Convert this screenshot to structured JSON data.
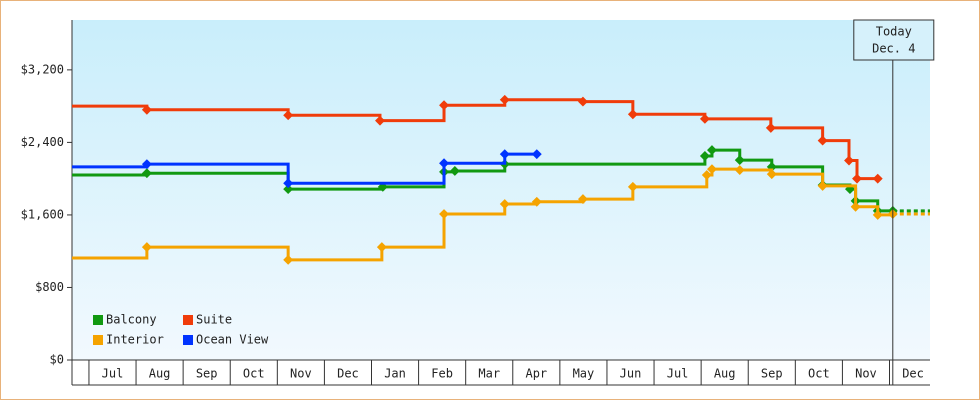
{
  "chart_data": {
    "type": "step-line",
    "xticks": [
      {
        "value": 0.5,
        "label": "Jul"
      },
      {
        "value": 1.5,
        "label": "Aug"
      },
      {
        "value": 2.5,
        "label": "Sep"
      },
      {
        "value": 3.5,
        "label": "Oct"
      },
      {
        "value": 4.5,
        "label": "Nov"
      },
      {
        "value": 5.5,
        "label": "Dec"
      },
      {
        "value": 6.5,
        "label": "Jan"
      },
      {
        "value": 7.5,
        "label": "Feb"
      },
      {
        "value": 8.5,
        "label": "Mar"
      },
      {
        "value": 9.5,
        "label": "Apr"
      },
      {
        "value": 10.5,
        "label": "May"
      },
      {
        "value": 11.5,
        "label": "Jun"
      },
      {
        "value": 12.5,
        "label": "Jul"
      },
      {
        "value": 13.5,
        "label": "Aug"
      },
      {
        "value": 14.5,
        "label": "Sep"
      },
      {
        "value": 15.5,
        "label": "Oct"
      },
      {
        "value": 16.5,
        "label": "Nov"
      },
      {
        "value": 17.5,
        "label": "Dec"
      }
    ],
    "xlim": [
      -0.36,
      17.86
    ],
    "ylim": [
      0,
      3750
    ],
    "yticks": [
      {
        "value": 0,
        "label": "$0"
      },
      {
        "value": 800,
        "label": "$800"
      },
      {
        "value": 1600,
        "label": "$1,600"
      },
      {
        "value": 2400,
        "label": "$2,400"
      },
      {
        "value": 3200,
        "label": "$3,200"
      }
    ],
    "annotation": {
      "lines": [
        "Today",
        "Dec. 4"
      ],
      "x": 17.07
    },
    "series": [
      {
        "name": "Balcony",
        "color": "#119911",
        "x": [
          -0.36,
          1.23,
          4.23,
          6.24,
          7.54,
          7.77,
          8.83,
          13.08,
          13.23,
          13.82,
          14.5,
          15.58,
          16.16,
          16.28,
          16.75,
          17.07
        ],
        "values": [
          2040,
          2060,
          1885,
          1910,
          2075,
          2085,
          2160,
          2250,
          2315,
          2205,
          2130,
          1930,
          1885,
          1755,
          1645,
          1645
        ]
      },
      {
        "name": "Suite",
        "color": "#f03c0a",
        "x": [
          -0.36,
          1.23,
          4.23,
          6.18,
          7.54,
          8.83,
          10.49,
          11.55,
          13.08,
          14.48,
          15.58,
          16.14,
          16.31,
          16.75
        ],
        "values": [
          2800,
          2760,
          2700,
          2640,
          2810,
          2870,
          2850,
          2710,
          2660,
          2560,
          2420,
          2200,
          2000,
          2000
        ]
      },
      {
        "name": "Interior",
        "color": "#f5a300",
        "x": [
          -0.36,
          1.23,
          4.23,
          6.22,
          7.54,
          8.83,
          9.51,
          10.49,
          11.55,
          13.12,
          13.23,
          13.82,
          14.5,
          15.58,
          16.28,
          16.75,
          17.07
        ],
        "values": [
          1125,
          1245,
          1105,
          1245,
          1610,
          1720,
          1745,
          1775,
          1910,
          2040,
          2105,
          2095,
          2050,
          1920,
          1690,
          1600,
          1610
        ]
      },
      {
        "name": "Ocean View",
        "color": "#0033ff",
        "x": [
          -0.36,
          1.23,
          4.23,
          7.54,
          8.83,
          9.51
        ],
        "values": [
          2130,
          2160,
          1950,
          2170,
          2270,
          2270
        ]
      }
    ]
  }
}
